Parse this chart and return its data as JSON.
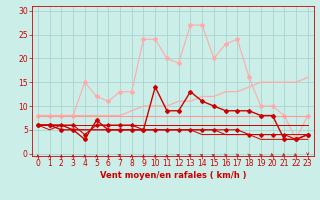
{
  "bg_color": "#cceee8",
  "grid_color": "#aad4ce",
  "xlabel": "Vent moyen/en rafales ( km/h )",
  "xlabel_color": "#cc0000",
  "xlabel_fontsize": 6.0,
  "tick_color": "#cc0000",
  "tick_fontsize": 5.5,
  "yticks": [
    0,
    5,
    10,
    15,
    20,
    25,
    30
  ],
  "xticks": [
    0,
    1,
    2,
    3,
    4,
    5,
    6,
    7,
    8,
    9,
    10,
    11,
    12,
    13,
    14,
    15,
    16,
    17,
    18,
    19,
    20,
    21,
    22,
    23
  ],
  "ylim": [
    -0.5,
    31
  ],
  "xlim": [
    -0.5,
    23.5
  ],
  "series": [
    {
      "x": [
        0,
        1,
        2,
        3,
        4,
        5,
        6,
        7,
        8,
        9,
        10,
        11,
        12,
        13,
        14,
        15,
        16,
        17,
        18,
        19,
        20,
        21,
        22,
        23
      ],
      "y": [
        8,
        8,
        8,
        8,
        15,
        12,
        11,
        13,
        13,
        24,
        24,
        20,
        19,
        27,
        27,
        20,
        23,
        24,
        16,
        10,
        10,
        8,
        3,
        8
      ],
      "color": "#ffaaaa",
      "lw": 0.8,
      "marker": "D",
      "ms": 2.0,
      "zorder": 2
    },
    {
      "x": [
        0,
        1,
        2,
        3,
        4,
        5,
        6,
        7,
        8,
        9,
        10,
        11,
        12,
        13,
        14,
        15,
        16,
        17,
        18,
        19,
        20,
        21,
        22,
        23
      ],
      "y": [
        8,
        8,
        8,
        8,
        8,
        8,
        8,
        8,
        9,
        10,
        10,
        10,
        11,
        11,
        12,
        12,
        13,
        13,
        14,
        15,
        15,
        15,
        15,
        16
      ],
      "color": "#ffaaaa",
      "lw": 0.9,
      "marker": null,
      "ms": 0,
      "zorder": 2
    },
    {
      "x": [
        0,
        1,
        2,
        3,
        4,
        5,
        6,
        7,
        8,
        9,
        10,
        11,
        12,
        13,
        14,
        15,
        16,
        17,
        18,
        19,
        20,
        21,
        22,
        23
      ],
      "y": [
        8,
        8,
        8,
        8,
        8,
        8,
        8,
        8,
        8,
        8,
        8,
        8,
        8,
        8,
        8,
        8,
        8,
        8,
        8,
        8,
        8,
        8,
        8,
        8
      ],
      "color": "#ff9999",
      "lw": 0.8,
      "marker": null,
      "ms": 0,
      "zorder": 2
    },
    {
      "x": [
        0,
        1,
        2,
        3,
        4,
        5,
        6,
        7,
        8,
        9,
        10,
        11,
        12,
        13,
        14,
        15,
        16,
        17,
        18,
        19,
        20,
        21,
        22,
        23
      ],
      "y": [
        6,
        6,
        5,
        5,
        3,
        7,
        5,
        5,
        5,
        5,
        14,
        9,
        9,
        13,
        11,
        10,
        9,
        9,
        9,
        8,
        8,
        3,
        3,
        4
      ],
      "color": "#cc0000",
      "lw": 1.0,
      "marker": "D",
      "ms": 2.0,
      "zorder": 4
    },
    {
      "x": [
        0,
        1,
        2,
        3,
        4,
        5,
        6,
        7,
        8,
        9,
        10,
        11,
        12,
        13,
        14,
        15,
        16,
        17,
        18,
        19,
        20,
        21,
        22,
        23
      ],
      "y": [
        6,
        6,
        6,
        6,
        4,
        6,
        6,
        6,
        6,
        5,
        5,
        5,
        5,
        5,
        5,
        5,
        5,
        5,
        4,
        4,
        4,
        4,
        3,
        4
      ],
      "color": "#cc0000",
      "lw": 0.8,
      "marker": "D",
      "ms": 1.8,
      "zorder": 4
    },
    {
      "x": [
        0,
        1,
        2,
        3,
        4,
        5,
        6,
        7,
        8,
        9,
        10,
        11,
        12,
        13,
        14,
        15,
        16,
        17,
        18,
        19,
        20,
        21,
        22,
        23
      ],
      "y": [
        6,
        6,
        6,
        6,
        6,
        6,
        6,
        6,
        6,
        6,
        6,
        6,
        6,
        6,
        6,
        6,
        6,
        6,
        6,
        6,
        6,
        6,
        6,
        6
      ],
      "color": "#cc0000",
      "lw": 0.7,
      "marker": null,
      "ms": 0,
      "zorder": 3
    },
    {
      "x": [
        0,
        1,
        2,
        3,
        4,
        5,
        6,
        7,
        8,
        9,
        10,
        11,
        12,
        13,
        14,
        15,
        16,
        17,
        18,
        19,
        20,
        21,
        22,
        23
      ],
      "y": [
        6,
        5,
        6,
        5,
        5,
        5,
        5,
        5,
        5,
        5,
        5,
        5,
        5,
        5,
        4,
        4,
        4,
        4,
        4,
        4,
        4,
        4,
        4,
        4
      ],
      "color": "#cc0000",
      "lw": 0.7,
      "marker": null,
      "ms": 0,
      "zorder": 3
    },
    {
      "x": [
        0,
        1,
        2,
        3,
        4,
        5,
        6,
        7,
        8,
        9,
        10,
        11,
        12,
        13,
        14,
        15,
        16,
        17,
        18,
        19,
        20,
        21,
        22,
        23
      ],
      "y": [
        6,
        6,
        6,
        5,
        5,
        5,
        5,
        5,
        5,
        5,
        5,
        5,
        5,
        5,
        5,
        5,
        4,
        4,
        4,
        3,
        3,
        3,
        3,
        3
      ],
      "color": "#cc0000",
      "lw": 0.7,
      "marker": null,
      "ms": 0,
      "zorder": 3
    }
  ],
  "wind_angles": [
    0,
    0,
    0,
    0,
    0,
    0,
    0,
    45,
    0,
    0,
    0,
    0,
    45,
    45,
    45,
    45,
    90,
    90,
    90,
    90,
    135,
    135,
    135,
    180
  ],
  "wind_arrows_color": "#cc0000"
}
